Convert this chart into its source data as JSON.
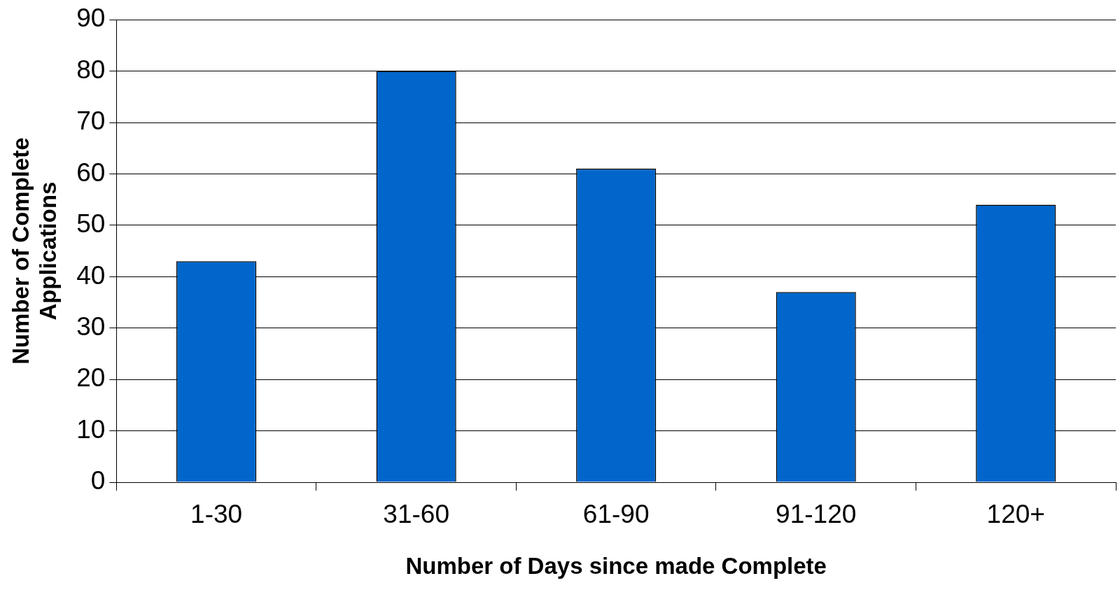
{
  "chart_data": {
    "type": "bar",
    "xlabel": "Number of Days since made Complete",
    "ylabel": "Number of Complete\nApplications",
    "categories": [
      "1-30",
      "31-60",
      "61-90",
      "91-120",
      "120+"
    ],
    "values": [
      43,
      80,
      61,
      37,
      54
    ],
    "color": "#0066cc",
    "ylim": [
      0,
      90
    ],
    "yticks": [
      0,
      10,
      20,
      30,
      40,
      50,
      60,
      70,
      80,
      90
    ],
    "grid": "y",
    "legend": false
  }
}
